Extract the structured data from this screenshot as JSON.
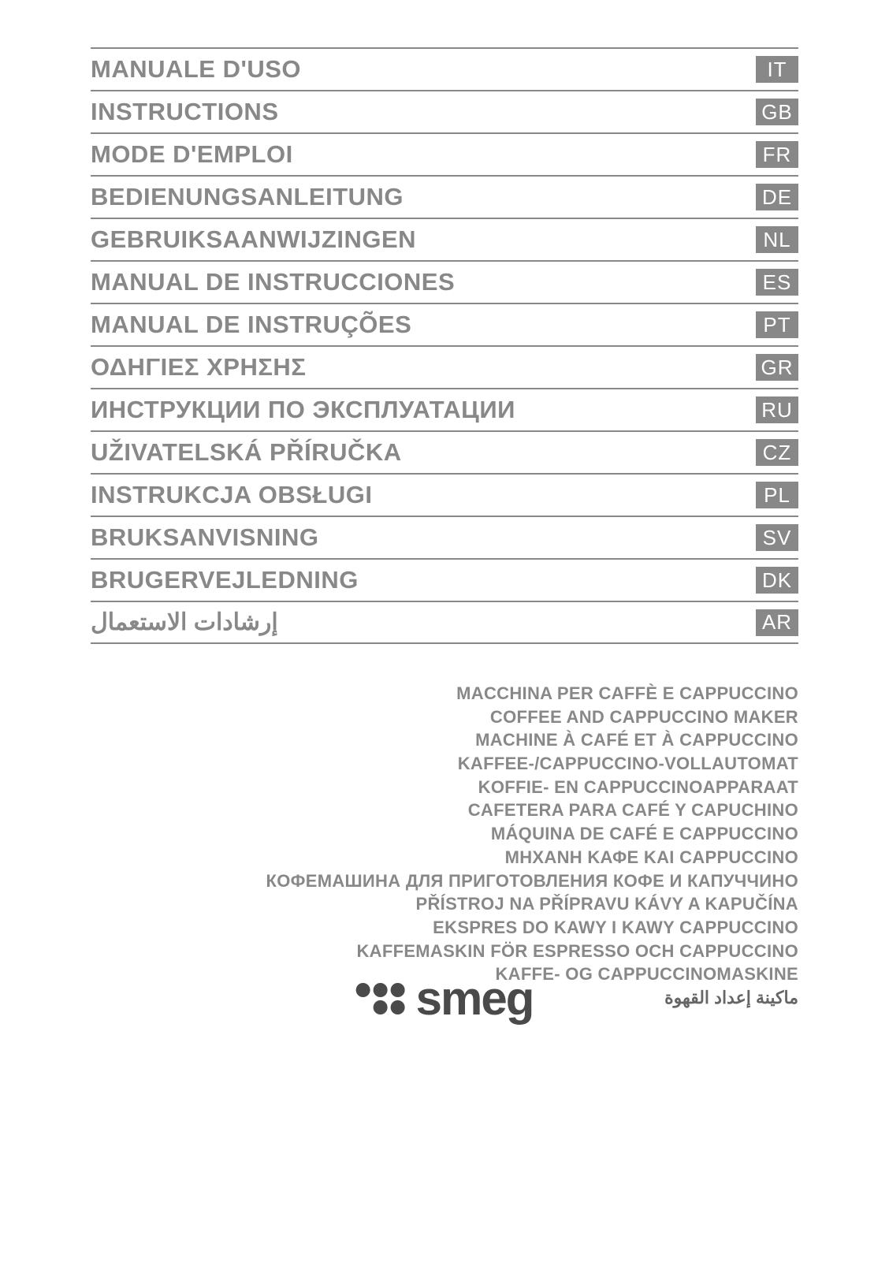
{
  "languages": [
    {
      "title": "MANUALE D'USO",
      "code": "IT",
      "rtl": false
    },
    {
      "title": "INSTRUCTIONS",
      "code": "GB",
      "rtl": false
    },
    {
      "title": "MODE D'EMPLOI",
      "code": "FR",
      "rtl": false
    },
    {
      "title": "BEDIENUNGSANLEITUNG",
      "code": "DE",
      "rtl": false
    },
    {
      "title": "GEBRUIKSAANWIJZINGEN",
      "code": "NL",
      "rtl": false
    },
    {
      "title": "MANUAL DE INSTRUCCIONES",
      "code": "ES",
      "rtl": false
    },
    {
      "title": "MANUAL DE INSTRUÇÕES",
      "code": "PT",
      "rtl": false
    },
    {
      "title": "ΟΔΗΓΙΕΣ ΧΡΗΣΗΣ",
      "code": "GR",
      "rtl": false
    },
    {
      "title": "ИНСТРУКЦИИ ПО ЭКСПЛУАТАЦИИ",
      "code": "RU",
      "rtl": false
    },
    {
      "title": "UŽIVATELSKÁ PŘÍRUČKA",
      "code": "CZ",
      "rtl": false
    },
    {
      "title": "INSTRUKCJA OBSŁUGI",
      "code": "PL",
      "rtl": false
    },
    {
      "title": "BRUKSANVISNING",
      "code": "SV",
      "rtl": false
    },
    {
      "title": "BRUGERVEJLEDNING",
      "code": "DK",
      "rtl": false
    },
    {
      "title": "إرشادات الاستعمال",
      "code": "AR",
      "rtl": true
    }
  ],
  "product_names": [
    {
      "text": "MACCHINA PER CAFFÈ E CAPPUCCINO",
      "rtl": false
    },
    {
      "text": "COFFEE AND CAPPUCCINO MAKER",
      "rtl": false
    },
    {
      "text": "MACHINE À CAFÉ ET À CAPPUCCINO",
      "rtl": false
    },
    {
      "text": "KAFFEE-/CAPPUCCINO-VOLLAUTOMAT",
      "rtl": false
    },
    {
      "text": "KOFFIE- EN CAPPUCCINOAPPARAAT",
      "rtl": false
    },
    {
      "text": "CAFETERA PARA CAFÉ Y CAPUCHINO",
      "rtl": false
    },
    {
      "text": "MÁQUINA DE CAFÉ E CAPPUCCINO",
      "rtl": false
    },
    {
      "text": "ΜΗΧΑΝΗ ΚΑΦΕ ΚΑΙ CAPPUCCINO",
      "rtl": false
    },
    {
      "text": "КОФЕМАШИНА ДЛЯ ПРИГОТОВЛЕНИЯ КОФЕ И КАПУЧЧИНО",
      "rtl": false
    },
    {
      "text": "PŘÍSTROJ NA PŘÍPRAVU KÁVY A KAPUČÍNA",
      "rtl": false
    },
    {
      "text": "EKSPRES DO KAWY I KAWY CAPPUCCINO",
      "rtl": false
    },
    {
      "text": "KAFFEMASKIN FÖR ESPRESSO OCH CAPPUCCINO",
      "rtl": false
    },
    {
      "text": "KAFFE- OG CAPPUCCINOMASKINE",
      "rtl": false
    },
    {
      "text": "ماكينة إعداد القهوة",
      "rtl": true
    }
  ],
  "brand": "smeg",
  "colors": {
    "text_gray": "#888888",
    "badge_bg": "#888888",
    "badge_fg": "#ffffff",
    "rule": "#888888",
    "logo": "#4a4a4a",
    "background": "#ffffff"
  }
}
